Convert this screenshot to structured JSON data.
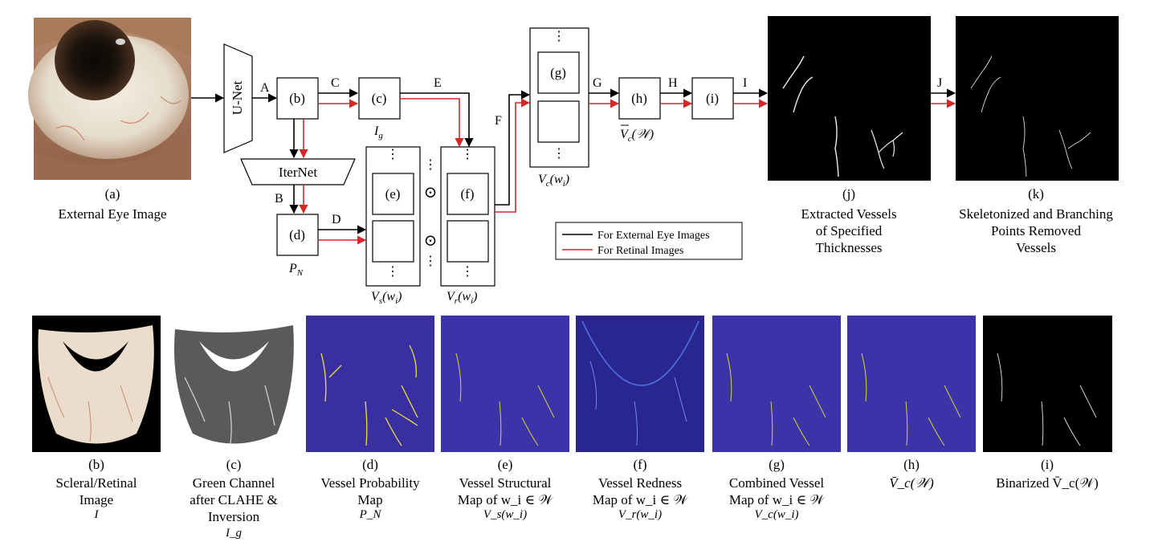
{
  "top": {
    "eye_caption_letter": "(a)",
    "eye_caption": "External Eye Image",
    "unet": "U-Net",
    "iternet": "IterNet",
    "box_b": "(b)",
    "box_c": "(c)",
    "box_d": "(d)",
    "box_e": "(e)",
    "box_f": "(f)",
    "box_g": "(g)",
    "box_h": "(h)",
    "box_i": "(i)",
    "edges": {
      "A": "A",
      "B": "B",
      "C": "C",
      "D": "D",
      "E": "E",
      "F": "F",
      "G": "G",
      "H": "H",
      "I": "I",
      "J": "J"
    },
    "ig_label_main": "I",
    "ig_label_sub": "g",
    "pn_label_main": "P",
    "pn_label_sub": "N",
    "vs_label": "V",
    "vs_sub": "s",
    "vs_arg": "(w",
    "vs_arg_sub": "i",
    "vs_close": ")",
    "vr_label": "V",
    "vr_sub": "r",
    "vr_arg": "(w",
    "vr_arg_sub": "i",
    "vr_close": ")",
    "vc_label": "V",
    "vc_sub": "c",
    "vc_arg": "(w",
    "vc_arg_sub": "i",
    "vc_close": ")",
    "vcbar_label": "V",
    "vcbar_sub": "c",
    "vcbar_arg": "(𝒲)",
    "odot": "⊙",
    "vdots": "⋮",
    "legend_black": "For External Eye Images",
    "legend_red": "For Retinal Images",
    "j_letter": "(j)",
    "j_line1": "Extracted Vessels",
    "j_line2": "of Specified",
    "j_line3": "Thicknesses",
    "k_letter": "(k)",
    "k_line1": "Skeletonized and Branching",
    "k_line2": "Points Removed",
    "k_line3": "Vessels"
  },
  "bottom": [
    {
      "letter": "(b)",
      "lines": [
        "Scleral/Retinal",
        "Image"
      ],
      "math": "I"
    },
    {
      "letter": "(c)",
      "lines": [
        "Green Channel",
        "after CLAHE &",
        "Inversion"
      ],
      "math": "I_g"
    },
    {
      "letter": "(d)",
      "lines": [
        "Vessel Probability",
        "Map"
      ],
      "math": "P_N"
    },
    {
      "letter": "(e)",
      "lines": [
        "Vessel Structural",
        "Map of w_i ∈ 𝒲"
      ],
      "math": "V_s(w_i)"
    },
    {
      "letter": "(f)",
      "lines": [
        "Vessel Redness",
        "Map of w_i ∈ 𝒲"
      ],
      "math": "V_r(w_i)"
    },
    {
      "letter": "(g)",
      "lines": [
        "Combined Vessel",
        "Map of w_i ∈ 𝒲"
      ],
      "math": "V_c(w_i)"
    },
    {
      "letter": "(h)",
      "lines": [
        "V̄_c(𝒲)"
      ],
      "math": ""
    },
    {
      "letter": "(i)",
      "lines": [
        "Binarized V̄_c(𝒲)"
      ],
      "math": ""
    }
  ],
  "colors": {
    "black_arrow": "#000000",
    "red_arrow": "#d62728",
    "map_bg": "#3a2fa0",
    "vessel": "#e8e23a",
    "sclera": "#f2ece0"
  }
}
